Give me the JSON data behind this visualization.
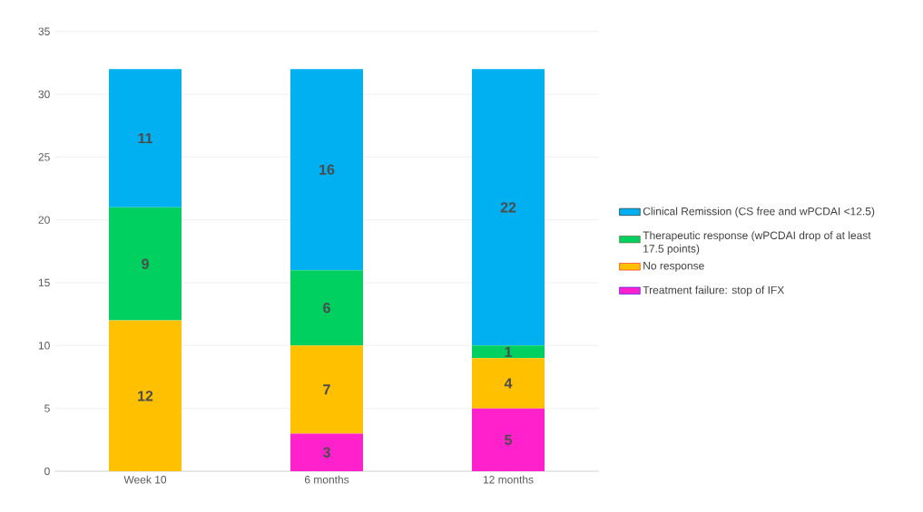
{
  "chart_data": {
    "type": "bar",
    "stacked": true,
    "categories": [
      "Week 10",
      "6 months",
      "12 months"
    ],
    "series": [
      {
        "name": "Treatment failure: stop of IFX",
        "color": "#ff22cc",
        "values": [
          0,
          3,
          5
        ],
        "value_labels": [
          null,
          "3",
          "5"
        ]
      },
      {
        "name": "No response",
        "color": "#ffc000",
        "values": [
          12,
          7,
          4
        ],
        "value_labels": [
          "12",
          "7",
          "4"
        ]
      },
      {
        "name": "Therapeutic response (wPCDAI drop of at least 17.5 points)",
        "color": "#00d060",
        "values": [
          9,
          6,
          1
        ],
        "value_labels": [
          "9",
          "6",
          "1"
        ]
      },
      {
        "name": "Clinical Remission (CS free and wPCDAI <12.5)",
        "color": "#00b0f0",
        "values": [
          11,
          16,
          22
        ],
        "value_labels": [
          "11",
          "16",
          "22"
        ]
      }
    ],
    "ylim": [
      0,
      35
    ],
    "yticks": [
      0,
      5,
      10,
      15,
      20,
      25,
      30,
      35
    ],
    "grid": "y",
    "legend": "right"
  }
}
